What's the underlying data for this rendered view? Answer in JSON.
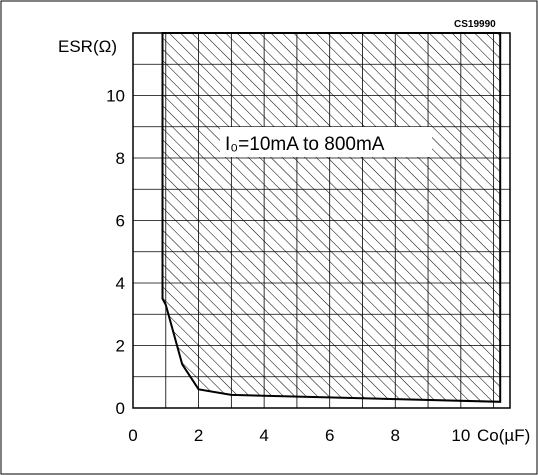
{
  "chart_data": {
    "type": "area",
    "code_label": "CS19990",
    "ylabel": "ESR(Ω)",
    "xlabel": "Co(µF)",
    "xlim": [
      0,
      11.5
    ],
    "ylim": [
      0,
      12
    ],
    "x_ticks": [
      0,
      2,
      4,
      6,
      8,
      10
    ],
    "y_ticks": [
      0,
      2,
      4,
      6,
      8,
      10
    ],
    "x_tick_labels": [
      "0",
      "2",
      "4",
      "6",
      "8",
      "10"
    ],
    "y_tick_labels": [
      "0",
      "2",
      "4",
      "6",
      "8",
      "10"
    ],
    "x_grid_step": 1,
    "y_grid_step": 1,
    "grid": true,
    "hatch": "diagonal",
    "annotation": "I₀=10mA to 800mA",
    "region": {
      "boundary": [
        {
          "x": 0.9,
          "y": 12
        },
        {
          "x": 0.9,
          "y": 3.5
        },
        {
          "x": 1.0,
          "y": 3.3
        },
        {
          "x": 1.5,
          "y": 1.4
        },
        {
          "x": 2.0,
          "y": 0.6
        },
        {
          "x": 3.0,
          "y": 0.42
        },
        {
          "x": 11.2,
          "y": 0.2
        },
        {
          "x": 11.2,
          "y": 12
        }
      ]
    }
  }
}
